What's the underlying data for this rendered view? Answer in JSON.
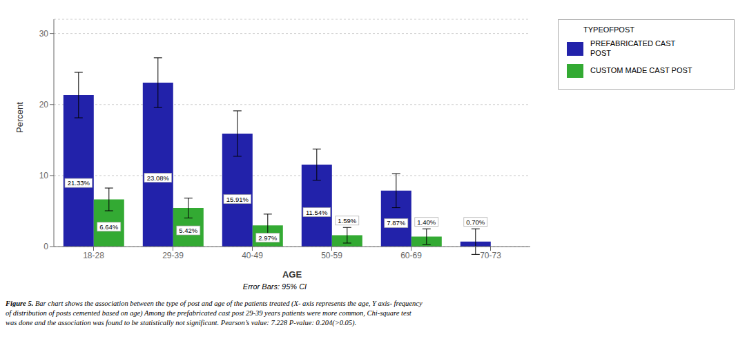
{
  "chart_data": {
    "type": "bar",
    "xlabel": "AGE",
    "ylabel": "Percent",
    "categories": [
      "18-28",
      "29-39",
      "40-49",
      "50-59",
      "60-69",
      "70-73"
    ],
    "series": [
      {
        "name": "PREFABRICATED CAST\nPOST",
        "color": "#2222aa",
        "values": [
          21.33,
          23.08,
          15.91,
          11.54,
          7.87,
          0.7
        ],
        "errors": [
          3.2,
          3.5,
          3.2,
          2.2,
          2.4,
          1.8
        ],
        "value_labels": [
          "21.33%",
          "23.08%",
          "15.91%",
          "11.54%",
          "7.87%",
          "0.70%"
        ]
      },
      {
        "name": "CUSTOM MADE CAST POST",
        "color": "#33aa33",
        "values": [
          6.64,
          5.42,
          2.97,
          1.59,
          1.4,
          0.0
        ],
        "errors": [
          1.6,
          1.4,
          1.6,
          1.1,
          1.1,
          0.0
        ],
        "value_labels": [
          "6.64%",
          "5.42%",
          "2.97%",
          "1.59%",
          "1.40%",
          null
        ]
      }
    ],
    "ylim": [
      0,
      32
    ],
    "yticks": [
      0,
      10,
      20,
      30
    ],
    "grid": true,
    "legend": "top-right",
    "legend_title": "TYPEOFPOST",
    "data_labels": true,
    "note": "Error Bars: 95% CI",
    "caption_bold": "Figure 5.",
    "caption_rest": " Bar chart shows the association between the type of post and age of the patients treated (X- axis represents the age, Y axis- frequency\nof distribution of posts cemented based on age) Among the prefabricated cast post 29-39 years patients were more common, Chi-square test\nwas done and the association was found to be statistically not significant. Pearson’s value: 7.228 P-value: 0.204(>0.05)."
  }
}
